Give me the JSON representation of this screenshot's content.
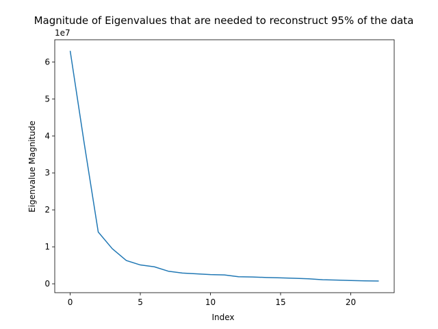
{
  "chart_data": {
    "type": "line",
    "title": "Magnitude of Eigenvalues that are needed to reconstruct 95% of the data",
    "xlabel": "Index",
    "ylabel": "Eigenvalue Magnitude",
    "y_offset_label": "1e7",
    "xlim": [
      -1.1,
      23.1
    ],
    "ylim": [
      -0.24,
      6.6
    ],
    "x_ticks": [
      0,
      5,
      10,
      15,
      20
    ],
    "y_ticks": [
      0,
      1,
      2,
      3,
      4,
      5,
      6
    ],
    "grid": false,
    "series": [
      {
        "color": "#1f77b4",
        "x": [
          0,
          1,
          2,
          3,
          4,
          5,
          6,
          7,
          8,
          9,
          10,
          11,
          12,
          13,
          14,
          15,
          16,
          17,
          18,
          19,
          20,
          21,
          22
        ],
        "y": [
          6.3,
          3.8,
          1.4,
          0.95,
          0.63,
          0.51,
          0.46,
          0.34,
          0.29,
          0.27,
          0.25,
          0.24,
          0.19,
          0.185,
          0.17,
          0.16,
          0.15,
          0.135,
          0.11,
          0.1,
          0.09,
          0.08,
          0.075
        ]
      }
    ]
  }
}
